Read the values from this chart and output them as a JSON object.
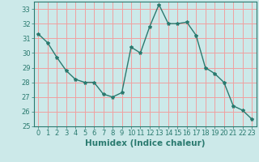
{
  "x": [
    0,
    1,
    2,
    3,
    4,
    5,
    6,
    7,
    8,
    9,
    10,
    11,
    12,
    13,
    14,
    15,
    16,
    17,
    18,
    19,
    20,
    21,
    22,
    23
  ],
  "y": [
    31.3,
    30.7,
    29.7,
    28.8,
    28.2,
    28.0,
    28.0,
    27.2,
    27.0,
    27.3,
    30.4,
    30.0,
    31.8,
    33.3,
    32.0,
    32.0,
    32.1,
    31.2,
    29.0,
    28.6,
    28.0,
    26.4,
    26.1,
    25.5
  ],
  "line_color": "#2a7a6f",
  "marker": "*",
  "marker_size": 3,
  "bg_color": "#cce9e9",
  "grid_color": "#f0a0a0",
  "xlabel": "Humidex (Indice chaleur)",
  "ylim": [
    25,
    33.5
  ],
  "xlim": [
    -0.5,
    23.5
  ],
  "yticks": [
    25,
    26,
    27,
    28,
    29,
    30,
    31,
    32,
    33
  ],
  "xticks": [
    0,
    1,
    2,
    3,
    4,
    5,
    6,
    7,
    8,
    9,
    10,
    11,
    12,
    13,
    14,
    15,
    16,
    17,
    18,
    19,
    20,
    21,
    22,
    23
  ],
  "tick_label_size": 6,
  "xlabel_size": 7.5,
  "line_width": 1.0
}
